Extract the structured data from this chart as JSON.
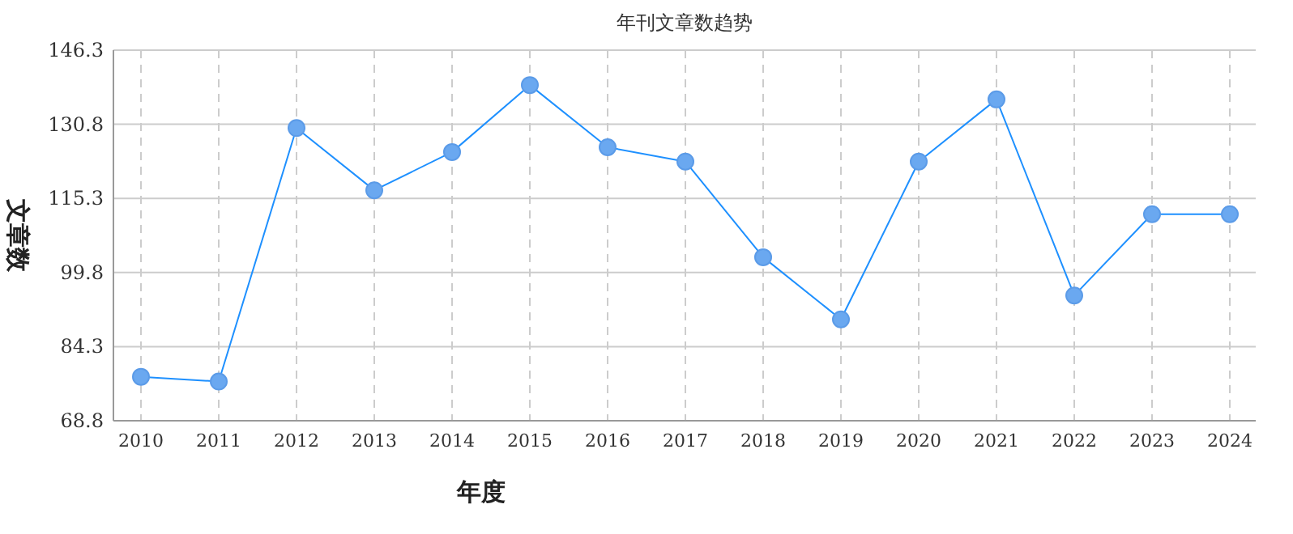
{
  "chart_data": {
    "type": "line",
    "title": "年刊文章数趋势",
    "xlabel": "年度",
    "ylabel": "文章数",
    "categories": [
      "2010",
      "2011",
      "2012",
      "2013",
      "2014",
      "2015",
      "2016",
      "2017",
      "2018",
      "2019",
      "2020",
      "2021",
      "2022",
      "2023",
      "2024"
    ],
    "series": [
      {
        "color": "#1e90ff",
        "values": [
          78,
          77,
          130,
          117,
          125,
          139,
          126,
          123,
          103,
          90,
          123,
          136,
          95,
          112,
          112
        ]
      }
    ],
    "ylim": [
      68.8,
      146.3
    ],
    "yticks": [
      68.8,
      84.3,
      99.8,
      115.3,
      130.8,
      146.3
    ],
    "grid": true,
    "marker": "circle",
    "line_style": "solid"
  }
}
